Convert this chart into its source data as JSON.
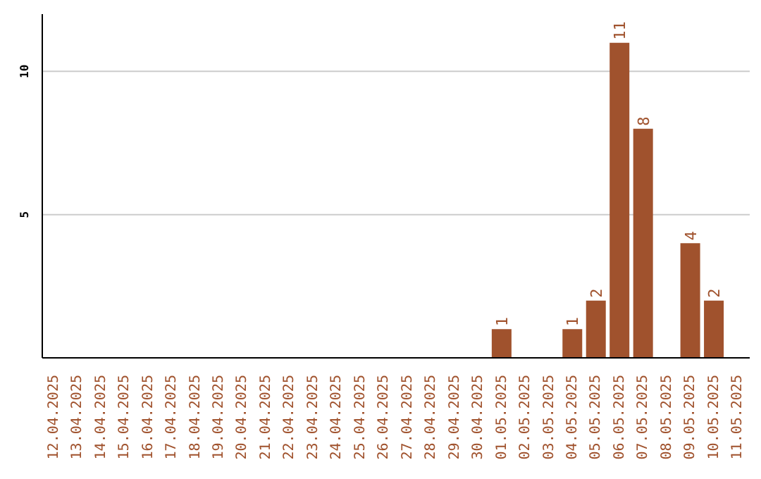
{
  "chart_data": {
    "type": "bar",
    "categories": [
      "12.04.2025",
      "13.04.2025",
      "14.04.2025",
      "15.04.2025",
      "16.04.2025",
      "17.04.2025",
      "18.04.2025",
      "19.04.2025",
      "20.04.2025",
      "21.04.2025",
      "22.04.2025",
      "23.04.2025",
      "24.04.2025",
      "25.04.2025",
      "26.04.2025",
      "27.04.2025",
      "28.04.2025",
      "29.04.2025",
      "30.04.2025",
      "01.05.2025",
      "02.05.2025",
      "03.05.2025",
      "04.05.2025",
      "05.05.2025",
      "06.05.2025",
      "07.05.2025",
      "08.05.2025",
      "09.05.2025",
      "10.05.2025",
      "11.05.2025"
    ],
    "values": [
      null,
      null,
      null,
      null,
      null,
      null,
      null,
      null,
      null,
      null,
      null,
      null,
      null,
      null,
      null,
      null,
      null,
      null,
      null,
      1,
      null,
      null,
      1,
      2,
      11,
      8,
      null,
      4,
      2,
      null
    ],
    "color": "#a0522d",
    "ylim": [
      0,
      12
    ],
    "yticks": [
      5,
      10
    ],
    "grid": "y",
    "data_labels": true
  }
}
